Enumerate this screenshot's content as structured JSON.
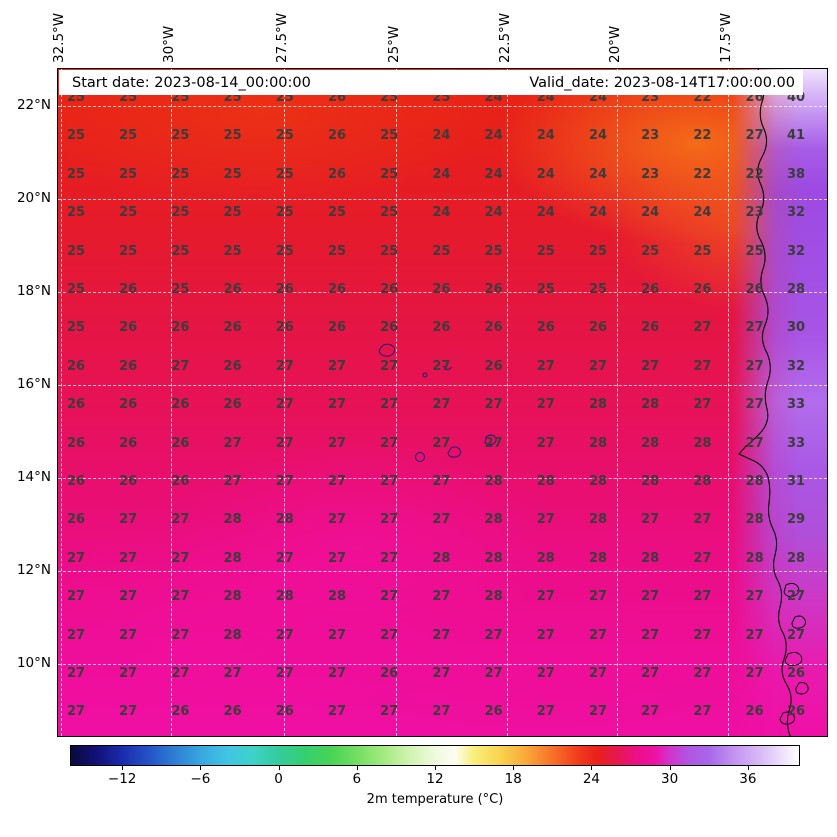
{
  "header": {
    "start": "Start date: 2023-08-14_00:00:00",
    "valid": "Valid_date: 2023-08-14T17:00:00.00"
  },
  "chart_data": {
    "type": "heatmap",
    "title": "",
    "x_tick_labels": [
      "32.5°W",
      "30°W",
      "27.5°W",
      "25°W",
      "22.5°W",
      "20°W",
      "17.5°W"
    ],
    "y_tick_labels": [
      "22°N",
      "20°N",
      "18°N",
      "16°N",
      "14°N",
      "12°N",
      "10°N"
    ],
    "row_direction": "top-to-bottom",
    "col_direction": "west-to-east",
    "values": [
      [
        25,
        25,
        25,
        25,
        25,
        26,
        25,
        25,
        24,
        24,
        24,
        23,
        22,
        26,
        40
      ],
      [
        25,
        25,
        25,
        25,
        25,
        26,
        25,
        24,
        24,
        24,
        24,
        23,
        22,
        27,
        41
      ],
      [
        25,
        25,
        25,
        25,
        25,
        26,
        25,
        24,
        24,
        24,
        24,
        23,
        22,
        22,
        38
      ],
      [
        25,
        25,
        25,
        25,
        25,
        25,
        25,
        24,
        24,
        24,
        24,
        24,
        24,
        23,
        32
      ],
      [
        25,
        25,
        25,
        25,
        25,
        25,
        25,
        25,
        25,
        25,
        25,
        25,
        25,
        25,
        32
      ],
      [
        25,
        26,
        25,
        26,
        26,
        26,
        26,
        26,
        26,
        25,
        25,
        26,
        26,
        26,
        28
      ],
      [
        25,
        26,
        26,
        26,
        26,
        26,
        26,
        26,
        26,
        26,
        26,
        26,
        27,
        27,
        30
      ],
      [
        26,
        26,
        27,
        26,
        27,
        27,
        27,
        27,
        26,
        27,
        27,
        27,
        27,
        27,
        32
      ],
      [
        26,
        26,
        26,
        26,
        27,
        27,
        27,
        27,
        27,
        27,
        28,
        28,
        27,
        27,
        33
      ],
      [
        26,
        26,
        26,
        27,
        27,
        27,
        27,
        27,
        27,
        27,
        28,
        28,
        28,
        27,
        33
      ],
      [
        26,
        26,
        26,
        27,
        27,
        27,
        27,
        27,
        28,
        28,
        28,
        28,
        28,
        28,
        31
      ],
      [
        26,
        27,
        27,
        28,
        28,
        27,
        27,
        27,
        28,
        27,
        28,
        27,
        27,
        28,
        29
      ],
      [
        27,
        27,
        27,
        28,
        27,
        27,
        27,
        28,
        28,
        28,
        28,
        28,
        27,
        28,
        28
      ],
      [
        27,
        27,
        27,
        28,
        28,
        28,
        27,
        27,
        28,
        27,
        27,
        27,
        27,
        27,
        27
      ],
      [
        27,
        27,
        27,
        28,
        27,
        27,
        27,
        27,
        27,
        27,
        27,
        27,
        27,
        27,
        27
      ],
      [
        27,
        27,
        27,
        27,
        27,
        27,
        26,
        27,
        27,
        27,
        27,
        27,
        27,
        27,
        26
      ],
      [
        27,
        27,
        26,
        26,
        26,
        27,
        27,
        27,
        26,
        27,
        27,
        27,
        27,
        26,
        26
      ]
    ],
    "colorbar": {
      "label": "2m temperature (°C)",
      "tick_labels": [
        "−12",
        "−6",
        "0",
        "6",
        "12",
        "18",
        "24",
        "30",
        "36"
      ],
      "tick_values": [
        -12,
        -6,
        0,
        6,
        12,
        18,
        24,
        30,
        36
      ],
      "range": [
        -16,
        40
      ],
      "stops": [
        {
          "v": -16,
          "c": "#0a0a3c"
        },
        {
          "v": -14,
          "c": "#121178"
        },
        {
          "v": -12,
          "c": "#1b2cae"
        },
        {
          "v": -10,
          "c": "#2453c8"
        },
        {
          "v": -8,
          "c": "#2e7fd4"
        },
        {
          "v": -6,
          "c": "#38a7df"
        },
        {
          "v": -4,
          "c": "#41c4e4"
        },
        {
          "v": -2,
          "c": "#3ed2c8"
        },
        {
          "v": 0,
          "c": "#33cc9b"
        },
        {
          "v": 2,
          "c": "#36cf6f"
        },
        {
          "v": 4,
          "c": "#47d455"
        },
        {
          "v": 6,
          "c": "#72df62"
        },
        {
          "v": 8,
          "c": "#a2ea80"
        },
        {
          "v": 10,
          "c": "#cff3ae"
        },
        {
          "v": 12,
          "c": "#eefadd"
        },
        {
          "v": 13.5,
          "c": "#fdfdf2"
        },
        {
          "v": 15,
          "c": "#f9ef79"
        },
        {
          "v": 17,
          "c": "#f8d44e"
        },
        {
          "v": 19,
          "c": "#f9a93a"
        },
        {
          "v": 21,
          "c": "#f7722a"
        },
        {
          "v": 23,
          "c": "#f23c1c"
        },
        {
          "v": 24.5,
          "c": "#e9201c"
        },
        {
          "v": 26,
          "c": "#e8174f"
        },
        {
          "v": 27.5,
          "c": "#ec0f86"
        },
        {
          "v": 29,
          "c": "#ee12a6"
        },
        {
          "v": 30,
          "c": "#d332c9"
        },
        {
          "v": 31.5,
          "c": "#b155e3"
        },
        {
          "v": 33,
          "c": "#a865e9"
        },
        {
          "v": 35,
          "c": "#c393f0"
        },
        {
          "v": 37,
          "c": "#d9b9f6"
        },
        {
          "v": 40,
          "c": "#ffffff"
        }
      ]
    }
  }
}
